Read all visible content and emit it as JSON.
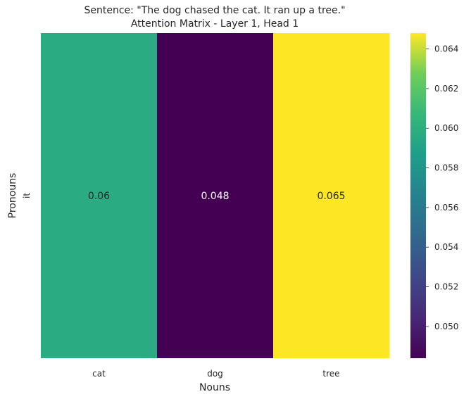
{
  "chart_data": {
    "type": "heatmap",
    "title_line1": "Sentence: \"The dog chased the cat. It ran up a tree.\"",
    "title_line2": "Attention Matrix - Layer 1, Head 1",
    "xlabel": "Nouns",
    "ylabel": "Pronouns",
    "x_categories": [
      "cat",
      "dog",
      "tree"
    ],
    "y_categories": [
      "it"
    ],
    "values": [
      [
        0.0597,
        0.0484,
        0.0648
      ]
    ],
    "annotations": [
      [
        "0.06",
        "0.048",
        "0.065"
      ]
    ],
    "colormap": "viridis",
    "vmin": 0.0484,
    "vmax": 0.0648,
    "colorbar_ticks": [
      0.05,
      0.052,
      0.054,
      0.056,
      0.058,
      0.06,
      0.062,
      0.064
    ],
    "colorbar_tick_labels": [
      "0.050",
      "0.052",
      "0.054",
      "0.056",
      "0.058",
      "0.060",
      "0.062",
      "0.064"
    ]
  }
}
